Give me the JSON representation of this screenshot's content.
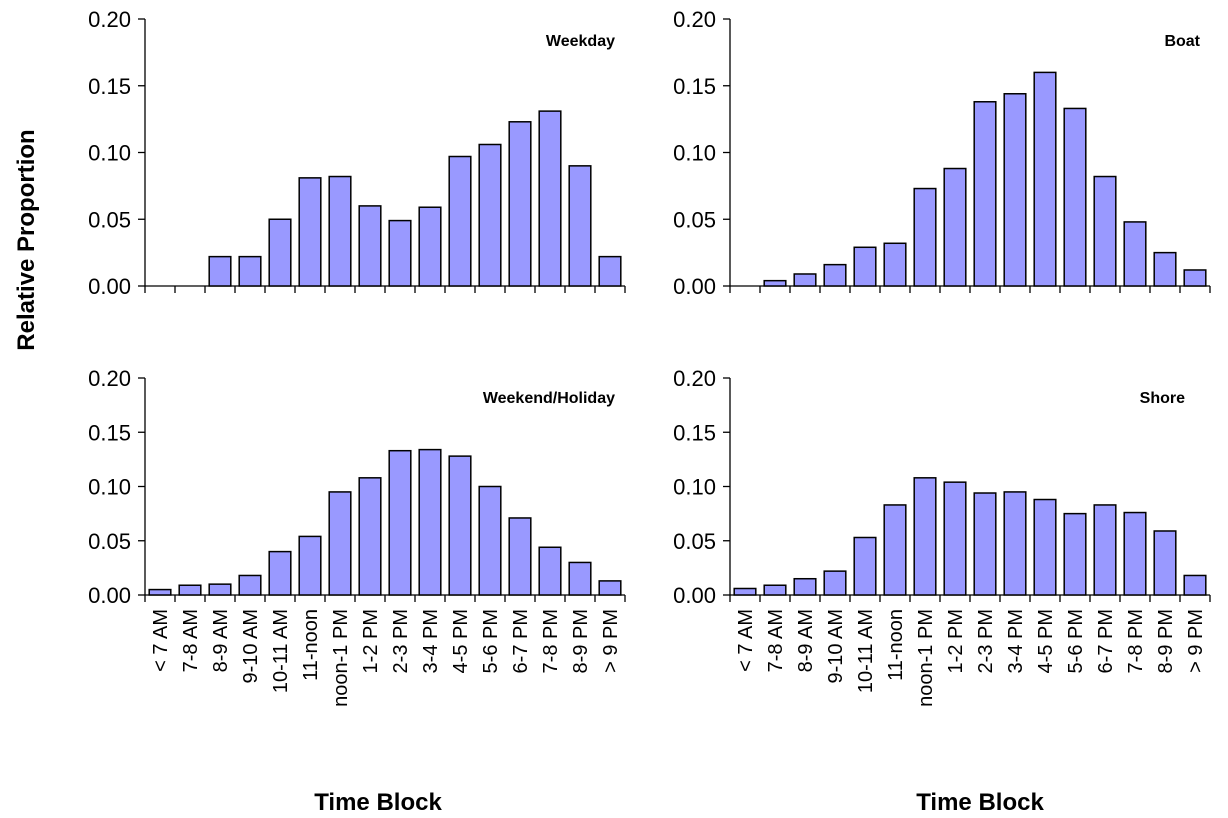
{
  "chart_data": [
    {
      "type": "bar",
      "title": "Weekday",
      "xlabel": "",
      "ylabel": "Relative Proportion",
      "ylim": [
        0,
        0.2
      ],
      "yticks": [
        "0.00",
        "0.05",
        "0.10",
        "0.15",
        "0.20"
      ],
      "categories": [
        "< 7 AM",
        "7-8 AM",
        "8-9 AM",
        "9-10 AM",
        "10-11 AM",
        "11-noon",
        "noon-1 PM",
        "1-2 PM",
        "2-3 PM",
        "3-4 PM",
        "4-5 PM",
        "5-6 PM",
        "6-7 PM",
        "7-8 PM",
        "8-9 PM",
        "> 9 PM"
      ],
      "values": [
        0.0,
        0.0,
        0.022,
        0.022,
        0.05,
        0.081,
        0.082,
        0.06,
        0.049,
        0.059,
        0.097,
        0.106,
        0.123,
        0.131,
        0.09,
        0.022
      ],
      "bar_color": "#9999ff",
      "show_category_labels": false
    },
    {
      "type": "bar",
      "title": "Boat",
      "xlabel": "",
      "ylabel": "Relative Proportion",
      "ylim": [
        0,
        0.2
      ],
      "yticks": [
        "0.00",
        "0.05",
        "0.10",
        "0.15",
        "0.20"
      ],
      "categories": [
        "< 7 AM",
        "7-8 AM",
        "8-9 AM",
        "9-10 AM",
        "10-11 AM",
        "11-noon",
        "noon-1 PM",
        "1-2 PM",
        "2-3 PM",
        "3-4 PM",
        "4-5 PM",
        "5-6 PM",
        "6-7 PM",
        "7-8 PM",
        "8-9 PM",
        "> 9 PM"
      ],
      "values": [
        0.0,
        0.004,
        0.009,
        0.016,
        0.029,
        0.032,
        0.073,
        0.088,
        0.138,
        0.144,
        0.16,
        0.133,
        0.082,
        0.048,
        0.025,
        0.012
      ],
      "bar_color": "#9999ff",
      "show_category_labels": false
    },
    {
      "type": "bar",
      "title": "Weekend/Holiday",
      "xlabel": "Time Block",
      "ylabel": "Relative Proportion",
      "ylim": [
        0,
        0.2
      ],
      "yticks": [
        "0.00",
        "0.05",
        "0.10",
        "0.15",
        "0.20"
      ],
      "categories": [
        "< 7 AM",
        "7-8 AM",
        "8-9 AM",
        "9-10 AM",
        "10-11 AM",
        "11-noon",
        "noon-1 PM",
        "1-2 PM",
        "2-3 PM",
        "3-4 PM",
        "4-5 PM",
        "5-6 PM",
        "6-7 PM",
        "7-8 PM",
        "8-9 PM",
        "> 9 PM"
      ],
      "values": [
        0.005,
        0.009,
        0.01,
        0.018,
        0.04,
        0.054,
        0.095,
        0.108,
        0.133,
        0.134,
        0.128,
        0.1,
        0.071,
        0.044,
        0.03,
        0.013
      ],
      "bar_color": "#9999ff",
      "show_category_labels": true
    },
    {
      "type": "bar",
      "title": "Shore",
      "xlabel": "Time Block",
      "ylabel": "Relative Proportion",
      "ylim": [
        0,
        0.2
      ],
      "yticks": [
        "0.00",
        "0.05",
        "0.10",
        "0.15",
        "0.20"
      ],
      "categories": [
        "< 7 AM",
        "7-8 AM",
        "8-9 AM",
        "9-10 AM",
        "10-11 AM",
        "11-noon",
        "noon-1 PM",
        "1-2 PM",
        "2-3 PM",
        "3-4 PM",
        "4-5 PM",
        "5-6 PM",
        "6-7 PM",
        "7-8 PM",
        "8-9 PM",
        "> 9 PM"
      ],
      "values": [
        0.006,
        0.009,
        0.015,
        0.022,
        0.053,
        0.083,
        0.108,
        0.104,
        0.094,
        0.095,
        0.088,
        0.075,
        0.083,
        0.076,
        0.059,
        0.018
      ],
      "bar_color": "#9999ff",
      "show_category_labels": true
    }
  ],
  "shared_ylabel": "Relative Proportion"
}
